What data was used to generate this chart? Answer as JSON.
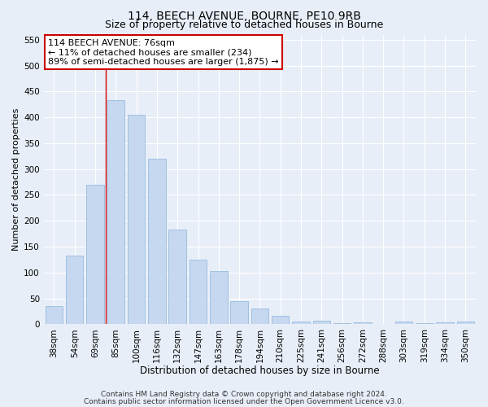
{
  "title1": "114, BEECH AVENUE, BOURNE, PE10 9RB",
  "title2": "Size of property relative to detached houses in Bourne",
  "xlabel": "Distribution of detached houses by size in Bourne",
  "ylabel": "Number of detached properties",
  "categories": [
    "38sqm",
    "54sqm",
    "69sqm",
    "85sqm",
    "100sqm",
    "116sqm",
    "132sqm",
    "147sqm",
    "163sqm",
    "178sqm",
    "194sqm",
    "210sqm",
    "225sqm",
    "241sqm",
    "256sqm",
    "272sqm",
    "288sqm",
    "303sqm",
    "319sqm",
    "334sqm",
    "350sqm"
  ],
  "values": [
    35,
    132,
    270,
    433,
    405,
    320,
    183,
    125,
    103,
    45,
    30,
    17,
    5,
    7,
    2,
    3,
    1,
    5,
    2,
    3,
    5
  ],
  "bar_color": "#c5d8f0",
  "bar_edge_color": "#8ab4d9",
  "vline_x": 2.5,
  "vline_color": "#cc0000",
  "annotation_text": "114 BEECH AVENUE: 76sqm\n← 11% of detached houses are smaller (234)\n89% of semi-detached houses are larger (1,875) →",
  "annotation_box_facecolor": "#ffffff",
  "annotation_box_edgecolor": "#cc0000",
  "ylim": [
    0,
    560
  ],
  "yticks": [
    0,
    50,
    100,
    150,
    200,
    250,
    300,
    350,
    400,
    450,
    500,
    550
  ],
  "footer1": "Contains HM Land Registry data © Crown copyright and database right 2024.",
  "footer2": "Contains public sector information licensed under the Open Government Licence v3.0.",
  "bg_color": "#e8eef8",
  "plot_bg_color": "#e8eef8",
  "grid_color": "#ffffff",
  "title1_fontsize": 10,
  "title2_fontsize": 9,
  "xlabel_fontsize": 8.5,
  "ylabel_fontsize": 8,
  "tick_fontsize": 7.5,
  "annotation_fontsize": 8,
  "footer_fontsize": 6.5
}
